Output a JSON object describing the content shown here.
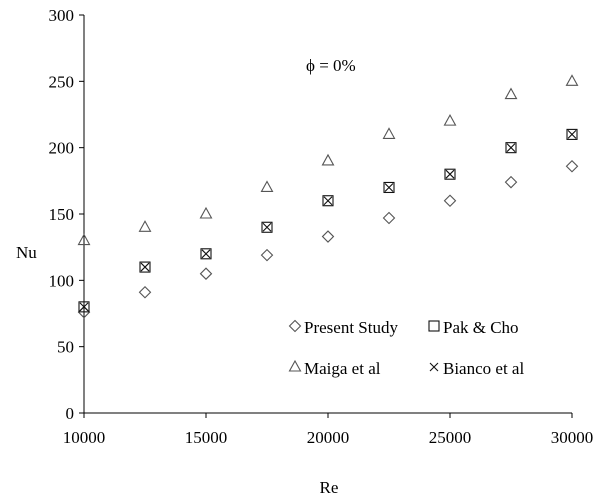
{
  "chart_data": {
    "type": "scatter",
    "title": "",
    "annotation": "ϕ = 0%",
    "xlabel": "Re",
    "ylabel": "Nu",
    "xlim": [
      10000,
      30000
    ],
    "ylim": [
      0,
      300
    ],
    "xticks": [
      10000,
      15000,
      20000,
      25000,
      30000
    ],
    "yticks": [
      0,
      50,
      100,
      150,
      200,
      250,
      300
    ],
    "x": [
      10000,
      12500,
      15000,
      17500,
      20000,
      22500,
      25000,
      27500,
      30000
    ],
    "series": [
      {
        "name": "Present Study",
        "marker": "diamond",
        "values": [
          76,
          91,
          105,
          119,
          133,
          147,
          160,
          174,
          186
        ]
      },
      {
        "name": "Pak & Cho",
        "marker": "square",
        "values": [
          80,
          110,
          120,
          140,
          160,
          170,
          180,
          200,
          210
        ]
      },
      {
        "name": "Maiga et al",
        "marker": "triangle",
        "values": [
          130,
          140,
          150,
          170,
          190,
          210,
          220,
          240,
          250
        ]
      },
      {
        "name": "Bianco et al",
        "marker": "x",
        "values": [
          80,
          110,
          120,
          140,
          160,
          170,
          180,
          200,
          210
        ]
      }
    ],
    "grid": false,
    "legend_position": "bottom-right"
  }
}
